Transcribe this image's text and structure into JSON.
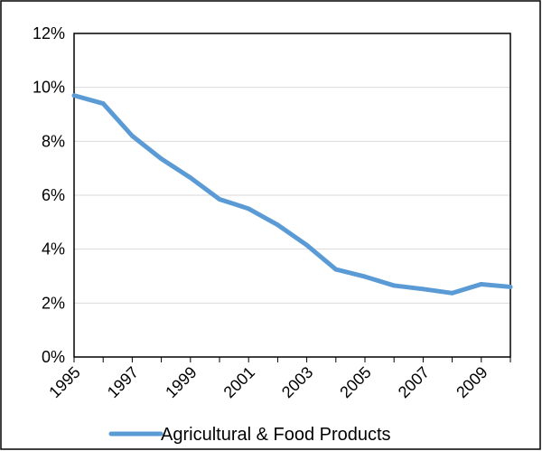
{
  "chart_data": {
    "type": "line",
    "x": [
      "1995",
      "1996",
      "1997",
      "1998",
      "1999",
      "2000",
      "2001",
      "2002",
      "2003",
      "2004",
      "2005",
      "2006",
      "2007",
      "2008",
      "2009",
      "2010"
    ],
    "x_tick_labels": [
      "1995",
      "1997",
      "1999",
      "2001",
      "2003",
      "2005",
      "2007",
      "2009"
    ],
    "series": [
      {
        "name": "Agricultural & Food Products",
        "values": [
          9.7,
          9.4,
          8.2,
          7.35,
          6.65,
          5.85,
          5.5,
          4.9,
          4.15,
          3.25,
          2.98,
          2.65,
          2.52,
          2.37,
          2.7,
          2.6
        ]
      }
    ],
    "y_tick_labels": [
      "0%",
      "2%",
      "4%",
      "6%",
      "8%",
      "10%",
      "12%"
    ],
    "ylim": [
      0,
      12
    ],
    "y_unit": "%",
    "grid": "horizontal",
    "legend_position": "bottom",
    "title": "",
    "xlabel": "",
    "ylabel": "",
    "colors": {
      "series": "#5B9BD5",
      "grid": "#D9D9D9",
      "axis": "#000000",
      "frame": "#000000"
    }
  }
}
